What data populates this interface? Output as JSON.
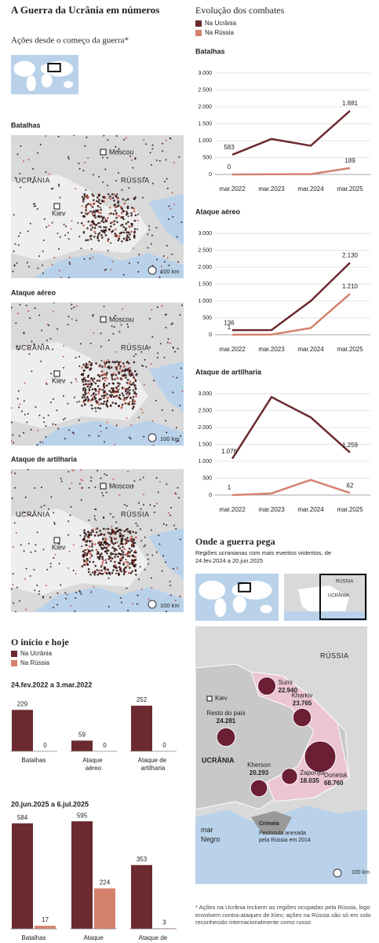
{
  "title": "A Guerra da Ucrânia em números",
  "left_subtitle": "Ações desde o começo da guerra*",
  "map_titles": [
    "Batalhas",
    "Ataque aéreo",
    "Ataque de artilharia"
  ],
  "map_labels": {
    "moscow": "Moscou",
    "ukraine": "UCRÂNIA",
    "russia": "RÚSSIA",
    "kiev": "Kiev",
    "scale": "100 km"
  },
  "right_title": "Evolução dos combates",
  "bars_title": "O início e hoje",
  "where_title": "Onde a guerra pega",
  "where_subtitle": "Regiões ucranianas com mais eventos violentos, de 24.fev.2024 a 20.jun.2025",
  "region_map": {
    "russia": "RÚSSIA",
    "ukraine": "UCRÂNIA",
    "kiev": "Kiev",
    "sea": "mar Negro",
    "crimea": "Crimeia",
    "crimea_note": "Península anexada pela Rússia em 2014",
    "scale": "100 km"
  },
  "footnote": "* Ações na Ucrânia incluem as regiões ocupadas pela Rússia, logo envolvem contra-ataques de Kiev; ações na Rússia são só em solo reconhecido internacionalmente como russo",
  "chart_data": [
    {
      "type": "line",
      "title": "Batalhas",
      "categories": [
        "mar.2022",
        "mar.2023",
        "mar.2024",
        "mar.2025"
      ],
      "series": [
        {
          "name": "Na Ucrânia",
          "color": "#6b2a2f",
          "values": [
            583,
            1050,
            850,
            1881
          ],
          "value_labels": [
            "583",
            null,
            null,
            "1.881"
          ]
        },
        {
          "name": "Na Rússia",
          "color": "#d4826e",
          "values": [
            0,
            5,
            10,
            189
          ],
          "value_labels": [
            "0",
            null,
            null,
            "189"
          ]
        }
      ],
      "ylim": [
        0,
        3000
      ],
      "yticks": [
        0,
        500,
        {
          "value": 1000,
          "label": "1.000"
        },
        {
          "value": 1500,
          "label": "1.500"
        },
        {
          "value": 2000,
          "label": "2.000"
        },
        {
          "value": 2500,
          "label": "2.500"
        },
        {
          "value": 3000,
          "label": "3.000"
        }
      ],
      "grid": true
    },
    {
      "type": "line",
      "title": "Ataque aéreo",
      "categories": [
        "mar.2022",
        "mar.2023",
        "mar.2024",
        "mar.2025"
      ],
      "series": [
        {
          "name": "Na Ucrânia",
          "color": "#6b2a2f",
          "values": [
            136,
            140,
            1000,
            2130
          ],
          "value_labels": [
            "136",
            null,
            null,
            "2.130"
          ]
        },
        {
          "name": "Na Rússia",
          "color": "#d4826e",
          "values": [
            1,
            5,
            200,
            1210
          ],
          "value_labels": [
            "1",
            null,
            null,
            "1.210"
          ]
        }
      ],
      "ylim": [
        0,
        3000
      ],
      "yticks": [
        0,
        500,
        {
          "value": 1000,
          "label": "1.000"
        },
        {
          "value": 1500,
          "label": "1.500"
        },
        {
          "value": 2000,
          "label": "2.000"
        },
        {
          "value": 2500,
          "label": "2.500"
        },
        {
          "value": 3000,
          "label": "3.000"
        }
      ],
      "grid": true
    },
    {
      "type": "line",
      "title": "Ataque de artilharia",
      "categories": [
        "mar.2022",
        "mar.2023",
        "mar.2024",
        "mar.2025"
      ],
      "series": [
        {
          "name": "Na Ucrânia",
          "color": "#6b2a2f",
          "values": [
            1076,
            2900,
            2300,
            1259
          ],
          "value_labels": [
            "1.076",
            null,
            null,
            "1.259"
          ]
        },
        {
          "name": "Na Rússia",
          "color": "#d4826e",
          "values": [
            1,
            50,
            450,
            62
          ],
          "value_labels": [
            "1",
            null,
            null,
            "62"
          ]
        }
      ],
      "ylim": [
        0,
        3000
      ],
      "yticks": [
        0,
        500,
        {
          "value": 1000,
          "label": "1.000"
        },
        {
          "value": 1500,
          "label": "1.500"
        },
        {
          "value": 2000,
          "label": "2.000"
        },
        {
          "value": 2500,
          "label": "2.500"
        },
        {
          "value": 3000,
          "label": "3.000"
        }
      ],
      "grid": true
    },
    {
      "type": "bar",
      "title": "24.fev.2022 a 3.mar.2022",
      "categories": [
        "Batalhas",
        "Ataque aéreo",
        "Ataque de artilharia"
      ],
      "series": [
        {
          "name": "Na Ucrânia",
          "color": "#6b2a2f",
          "values": [
            229,
            59,
            252
          ]
        },
        {
          "name": "Na Rússia",
          "color": "#d4826e",
          "values": [
            0,
            0,
            0
          ]
        }
      ]
    },
    {
      "type": "bar",
      "title": "20.jun.2025 a 6.jul.2025",
      "categories": [
        "Batalhas",
        "Ataque",
        "Ataque de"
      ],
      "series": [
        {
          "name": "Na Ucrânia",
          "color": "#6b2a2f",
          "values": [
            584,
            595,
            353
          ]
        },
        {
          "name": "Na Rússia",
          "color": "#d4826e",
          "values": [
            17,
            224,
            3
          ]
        }
      ]
    },
    {
      "type": "bubble_map",
      "categories": [
        "Sumi",
        "Resto do país",
        "Kharkiv",
        "Donetsk",
        "Kherson",
        "Zaporíjia"
      ],
      "values": [
        22940,
        24281,
        23765,
        68760,
        20293,
        18035
      ],
      "value_labels": [
        "22.940",
        "24.281",
        "23.765",
        "68.760",
        "20.293",
        "18.035"
      ],
      "color": "#6b1f35"
    }
  ]
}
